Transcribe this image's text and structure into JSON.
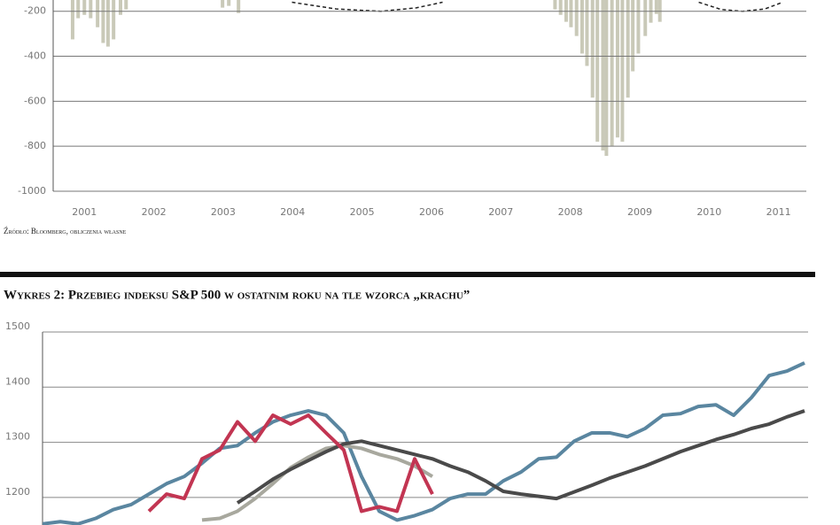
{
  "chart_data": [
    {
      "type": "bar",
      "x": [
        2000.83,
        2000.91,
        2001.0,
        2001.09,
        2001.19,
        2001.27,
        2001.34,
        2001.42,
        2001.52,
        2001.6,
        2002.99,
        2003.08,
        2003.22,
        2007.78,
        2007.86,
        2007.94,
        2008.01,
        2008.09,
        2008.17,
        2008.24,
        2008.32,
        2008.39,
        2008.47,
        2008.52,
        2008.6,
        2008.68,
        2008.75,
        2008.83,
        2008.9,
        2008.98,
        2009.08,
        2009.16,
        2009.24,
        2009.29
      ],
      "values": [
        -325,
        -231,
        -216,
        -231,
        -271,
        -341,
        -357,
        -325,
        -216,
        -192,
        -184,
        -176,
        -208,
        -192,
        -216,
        -247,
        -271,
        -310,
        -388,
        -443,
        -584,
        -780,
        -819,
        -843,
        -800,
        -761,
        -780,
        -584,
        -467,
        -388,
        -310,
        -251,
        -212,
        -247
      ],
      "color": "#c9c9b8",
      "overlay": {
        "type": "line",
        "dashed": true,
        "color": "#222222",
        "x": [
          2003.99,
          2004.63,
          2005.27,
          2005.78,
          2006.16,
          2009.85,
          2010.17,
          2010.48,
          2010.8,
          2011.06
        ],
        "values": [
          -160,
          -190,
          -200,
          -185,
          -160,
          -160,
          -192,
          -200,
          -190,
          -160
        ]
      },
      "xlim": [
        2000.55,
        2011.4
      ],
      "xticks": [
        2001,
        2002,
        2003,
        2004,
        2005,
        2006,
        2007,
        2008,
        2009,
        2010,
        2011
      ],
      "ylim": [
        -1000,
        -150
      ],
      "yticks": [
        -200,
        -400,
        -600,
        -800,
        -1000
      ],
      "grid": true,
      "source": "Źródło: Bloomberg, obliczenia własne"
    },
    {
      "type": "line",
      "title": "Wykres 2: Przebieg indeksu S&P 500 w ostatnim roku na tle wzorca „krachu”",
      "series": [
        {
          "color": "#5a86a0",
          "values": [
            1152,
            1156,
            1152,
            1162,
            1178,
            1187,
            1206,
            1225,
            1238,
            1262,
            1289,
            1294,
            1317,
            1337,
            1349,
            1357,
            1349,
            1317,
            1238,
            1175,
            1159,
            1167,
            1178,
            1198,
            1206,
            1206,
            1230,
            1246,
            1270,
            1273,
            1302,
            1317,
            1317,
            1310,
            1325,
            1349,
            1352,
            1365,
            1368,
            1349,
            1381,
            1421,
            1429,
            1444
          ]
        },
        {
          "color": "#a8a89e",
          "values": [
            null,
            null,
            null,
            null,
            null,
            null,
            null,
            null,
            null,
            1159,
            1162,
            1175,
            1198,
            1225,
            1254,
            1273,
            1289,
            1294,
            1289,
            1278,
            1270,
            1257,
            1238,
            null,
            null,
            null,
            null,
            null,
            null,
            null,
            null,
            null,
            null,
            null,
            null,
            null,
            null,
            null,
            null,
            null,
            null,
            null,
            null,
            null
          ]
        },
        {
          "color": "#4a4a4a",
          "values": [
            null,
            null,
            null,
            null,
            null,
            null,
            null,
            null,
            null,
            null,
            null,
            1190,
            1211,
            1233,
            1251,
            1267,
            1283,
            1297,
            1302,
            1294,
            1286,
            1278,
            1270,
            1257,
            1246,
            1230,
            1211,
            1206,
            1202,
            1198,
            1210,
            1222,
            1235,
            1246,
            1257,
            1270,
            1283,
            1294,
            1305,
            1314,
            1325,
            1333,
            1346,
            1357
          ]
        },
        {
          "color": "#c23552",
          "values": [
            null,
            null,
            null,
            null,
            null,
            null,
            1175,
            1206,
            1198,
            1270,
            1286,
            1337,
            1302,
            1349,
            1333,
            1349,
            1317,
            1286,
            1175,
            1183,
            1175,
            1270,
            1206,
            null,
            null,
            null,
            null,
            null,
            null,
            null,
            null,
            null,
            null,
            null,
            null,
            null,
            null,
            null,
            null,
            null,
            null,
            null,
            null,
            null
          ]
        }
      ],
      "ylim": [
        1150,
        1500
      ],
      "yticks": [
        1500,
        1400,
        1300,
        1200
      ],
      "grid": true
    }
  ]
}
